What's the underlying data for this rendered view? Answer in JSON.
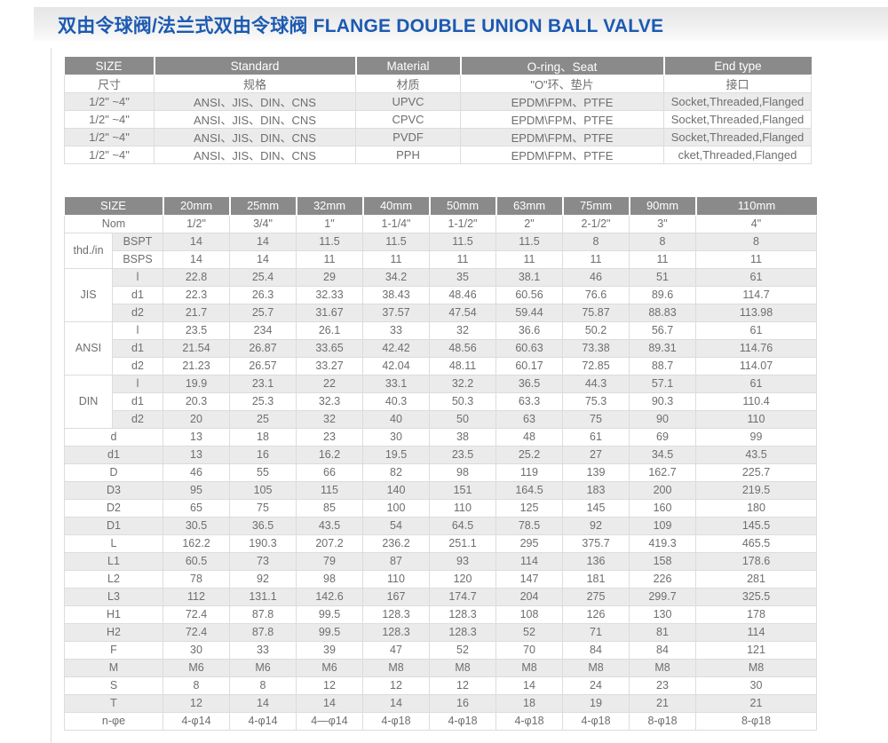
{
  "page": {
    "title": "双由令球阀/法兰式双由令球阀 FLANGE DOUBLE UNION BALL VALVE"
  },
  "colors": {
    "title_blue": "#1c5ab2",
    "table_header_bg": "#8a8a8a",
    "row_stripe": "#ebebeb",
    "body_text": "#6e6e6e",
    "cell_border": "#dcdcdc"
  },
  "spec_table": {
    "headers_en": [
      "SIZE",
      "Standard",
      "Material",
      "O-ring、Seat",
      "End type"
    ],
    "headers_cn": [
      "尺寸",
      "规格",
      "材质",
      "\"O\"环、垫片",
      "接口"
    ],
    "rows": [
      [
        "1/2\" ~4\"",
        "ANSI、JIS、DIN、CNS",
        "UPVC",
        "EPDM\\FPM、PTFE",
        "Socket,Threaded,Flanged"
      ],
      [
        "1/2\" ~4\"",
        "ANSI、JIS、DIN、CNS",
        "CPVC",
        "EPDM\\FPM、PTFE",
        "Socket,Threaded,Flanged"
      ],
      [
        "1/2\" ~4\"",
        "ANSI、JIS、DIN、CNS",
        "PVDF",
        "EPDM\\FPM、PTFE",
        "Socket,Threaded,Flanged"
      ],
      [
        "1/2\" ~4\"",
        "ANSI、JIS、DIN、CNS",
        "PPH",
        "EPDM\\FPM、PTFE",
        "cket,Threaded,Flanged"
      ]
    ]
  },
  "dim_table": {
    "size_label": "SIZE",
    "sizes": [
      "20mm",
      "25mm",
      "32mm",
      "40mm",
      "50mm",
      "63mm",
      "75mm",
      "90mm",
      "110mm"
    ],
    "rows": [
      {
        "label": "Nom",
        "values": [
          "1/2\"",
          "3/4\"",
          "1\"",
          "1-1/4\"",
          "1-1/2\"",
          "2\"",
          "2-1/2\"",
          "3\"",
          "4\""
        ]
      },
      {
        "group": "thd./in",
        "label": "BSPT",
        "values": [
          "14",
          "14",
          "11.5",
          "11.5",
          "11.5",
          "11.5",
          "8",
          "8",
          "8"
        ]
      },
      {
        "group": "thd./in",
        "label": "BSPS",
        "values": [
          "14",
          "14",
          "11",
          "11",
          "11",
          "11",
          "11",
          "11",
          "11"
        ]
      },
      {
        "group": "JIS",
        "label": "l",
        "values": [
          "22.8",
          "25.4",
          "29",
          "34.2",
          "35",
          "38.1",
          "46",
          "51",
          "61"
        ]
      },
      {
        "group": "JIS",
        "label": "d1",
        "values": [
          "22.3",
          "26.3",
          "32.33",
          "38.43",
          "48.46",
          "60.56",
          "76.6",
          "89.6",
          "114.7"
        ]
      },
      {
        "group": "JIS",
        "label": "d2",
        "values": [
          "21.7",
          "25.7",
          "31.67",
          "37.57",
          "47.54",
          "59.44",
          "75.87",
          "88.83",
          "113.98"
        ]
      },
      {
        "group": "ANSI",
        "label": "l",
        "values": [
          "23.5",
          "234",
          "26.1",
          "33",
          "32",
          "36.6",
          "50.2",
          "56.7",
          "61"
        ]
      },
      {
        "group": "ANSI",
        "label": "d1",
        "values": [
          "21.54",
          "26.87",
          "33.65",
          "42.42",
          "48.56",
          "60.63",
          "73.38",
          "89.31",
          "114.76"
        ]
      },
      {
        "group": "ANSI",
        "label": "d2",
        "values": [
          "21.23",
          "26.57",
          "33.27",
          "42.04",
          "48.11",
          "60.17",
          "72.85",
          "88.7",
          "114.07"
        ]
      },
      {
        "group": "DIN",
        "label": "l",
        "values": [
          "19.9",
          "23.1",
          "22",
          "33.1",
          "32.2",
          "36.5",
          "44.3",
          "57.1",
          "61"
        ]
      },
      {
        "group": "DIN",
        "label": "d1",
        "values": [
          "20.3",
          "25.3",
          "32.3",
          "40.3",
          "50.3",
          "63.3",
          "75.3",
          "90.3",
          "110.4"
        ]
      },
      {
        "group": "DIN",
        "label": "d2",
        "values": [
          "20",
          "25",
          "32",
          "40",
          "50",
          "63",
          "75",
          "90",
          "110"
        ]
      },
      {
        "label": "d",
        "values": [
          "13",
          "18",
          "23",
          "30",
          "38",
          "48",
          "61",
          "69",
          "99"
        ]
      },
      {
        "label": "d1",
        "values": [
          "13",
          "16",
          "16.2",
          "19.5",
          "23.5",
          "25.2",
          "27",
          "34.5",
          "43.5"
        ]
      },
      {
        "label": "D",
        "values": [
          "46",
          "55",
          "66",
          "82",
          "98",
          "119",
          "139",
          "162.7",
          "225.7"
        ]
      },
      {
        "label": "D3",
        "values": [
          "95",
          "105",
          "115",
          "140",
          "151",
          "164.5",
          "183",
          "200",
          "219.5"
        ]
      },
      {
        "label": "D2",
        "values": [
          "65",
          "75",
          "85",
          "100",
          "110",
          "125",
          "145",
          "160",
          "180"
        ]
      },
      {
        "label": "D1",
        "values": [
          "30.5",
          "36.5",
          "43.5",
          "54",
          "64.5",
          "78.5",
          "92",
          "109",
          "145.5"
        ]
      },
      {
        "label": "L",
        "values": [
          "162.2",
          "190.3",
          "207.2",
          "236.2",
          "251.1",
          "295",
          "375.7",
          "419.3",
          "465.5"
        ]
      },
      {
        "label": "L1",
        "values": [
          "60.5",
          "73",
          "79",
          "87",
          "93",
          "114",
          "136",
          "158",
          "178.6"
        ]
      },
      {
        "label": "L2",
        "values": [
          "78",
          "92",
          "98",
          "110",
          "120",
          "147",
          "181",
          "226",
          "281"
        ]
      },
      {
        "label": "L3",
        "values": [
          "112",
          "131.1",
          "142.6",
          "167",
          "174.7",
          "204",
          "275",
          "299.7",
          "325.5"
        ]
      },
      {
        "label": "H1",
        "values": [
          "72.4",
          "87.8",
          "99.5",
          "128.3",
          "128.3",
          "108",
          "126",
          "130",
          "178"
        ]
      },
      {
        "label": "H2",
        "values": [
          "72.4",
          "87.8",
          "99.5",
          "128.3",
          "128.3",
          "52",
          "71",
          "81",
          "114"
        ]
      },
      {
        "label": "F",
        "values": [
          "30",
          "33",
          "39",
          "47",
          "52",
          "70",
          "84",
          "84",
          "121"
        ]
      },
      {
        "label": "M",
        "values": [
          "M6",
          "M6",
          "M6",
          "M8",
          "M8",
          "M8",
          "M8",
          "M8",
          "M8"
        ]
      },
      {
        "label": "S",
        "values": [
          "8",
          "8",
          "12",
          "12",
          "12",
          "14",
          "24",
          "23",
          "30"
        ]
      },
      {
        "label": "T",
        "values": [
          "12",
          "14",
          "14",
          "14",
          "16",
          "18",
          "19",
          "21",
          "21"
        ]
      },
      {
        "label": "n-φe",
        "values": [
          "4-φ14",
          "4-φ14",
          "4—φ14",
          "4-φ18",
          "4-φ18",
          "4-φ18",
          "4-φ18",
          "8-φ18",
          "8-φ18"
        ]
      }
    ]
  }
}
